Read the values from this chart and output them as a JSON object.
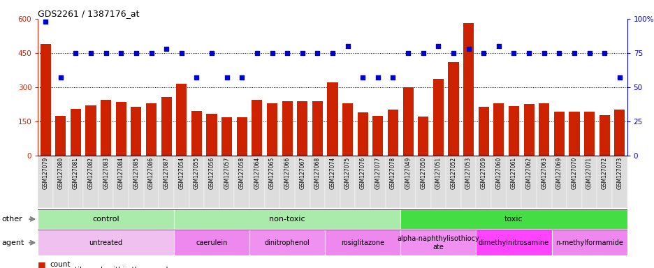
{
  "title": "GDS2261 / 1387176_at",
  "samples": [
    "GSM127079",
    "GSM127080",
    "GSM127081",
    "GSM127082",
    "GSM127083",
    "GSM127084",
    "GSM127085",
    "GSM127086",
    "GSM127087",
    "GSM127054",
    "GSM127055",
    "GSM127056",
    "GSM127057",
    "GSM127058",
    "GSM127064",
    "GSM127065",
    "GSM127066",
    "GSM127067",
    "GSM127068",
    "GSM127074",
    "GSM127075",
    "GSM127076",
    "GSM127077",
    "GSM127078",
    "GSM127049",
    "GSM127050",
    "GSM127051",
    "GSM127052",
    "GSM127053",
    "GSM127059",
    "GSM127060",
    "GSM127061",
    "GSM127062",
    "GSM127063",
    "GSM127069",
    "GSM127070",
    "GSM127071",
    "GSM127072",
    "GSM127073"
  ],
  "counts": [
    490,
    175,
    205,
    220,
    245,
    235,
    215,
    230,
    255,
    315,
    195,
    183,
    168,
    168,
    243,
    228,
    238,
    238,
    238,
    320,
    228,
    190,
    175,
    200,
    300,
    170,
    335,
    410,
    580,
    215,
    230,
    218,
    225,
    230,
    193,
    193,
    193,
    178,
    200
  ],
  "percentile_ranks": [
    98,
    57,
    75,
    75,
    75,
    75,
    75,
    75,
    78,
    75,
    57,
    75,
    57,
    57,
    75,
    75,
    75,
    75,
    75,
    75,
    80,
    57,
    57,
    57,
    75,
    75,
    80,
    75,
    78,
    75,
    80,
    75,
    75,
    75,
    75,
    75,
    75,
    75,
    57
  ],
  "other_groups": [
    {
      "label": "control",
      "start": 0,
      "end": 9,
      "color": "#AAEAAA"
    },
    {
      "label": "non-toxic",
      "start": 9,
      "end": 24,
      "color": "#AAEAAA"
    },
    {
      "label": "toxic",
      "start": 24,
      "end": 39,
      "color": "#44DD44"
    }
  ],
  "agent_groups": [
    {
      "label": "untreated",
      "start": 0,
      "end": 9,
      "color": "#F0C0F0"
    },
    {
      "label": "caerulein",
      "start": 9,
      "end": 14,
      "color": "#EE88EE"
    },
    {
      "label": "dinitrophenol",
      "start": 14,
      "end": 19,
      "color": "#F090F0"
    },
    {
      "label": "rosiglitazone",
      "start": 19,
      "end": 24,
      "color": "#EE88EE"
    },
    {
      "label": "alpha-naphthylisothiocy\nate",
      "start": 24,
      "end": 29,
      "color": "#F090F0"
    },
    {
      "label": "dimethylnitrosamine",
      "start": 29,
      "end": 34,
      "color": "#FF44FF"
    },
    {
      "label": "n-methylformamide",
      "start": 34,
      "end": 39,
      "color": "#EE88EE"
    }
  ],
  "bar_color": "#CC2200",
  "marker_color": "#0000CC",
  "ylim_left": [
    0,
    600
  ],
  "ylim_right": [
    0,
    100
  ],
  "yticks_left": [
    0,
    150,
    300,
    450,
    600
  ],
  "yticks_right": [
    0,
    25,
    50,
    75,
    100
  ],
  "ytick_labels_right": [
    "0",
    "25",
    "50",
    "75",
    "100%"
  ]
}
